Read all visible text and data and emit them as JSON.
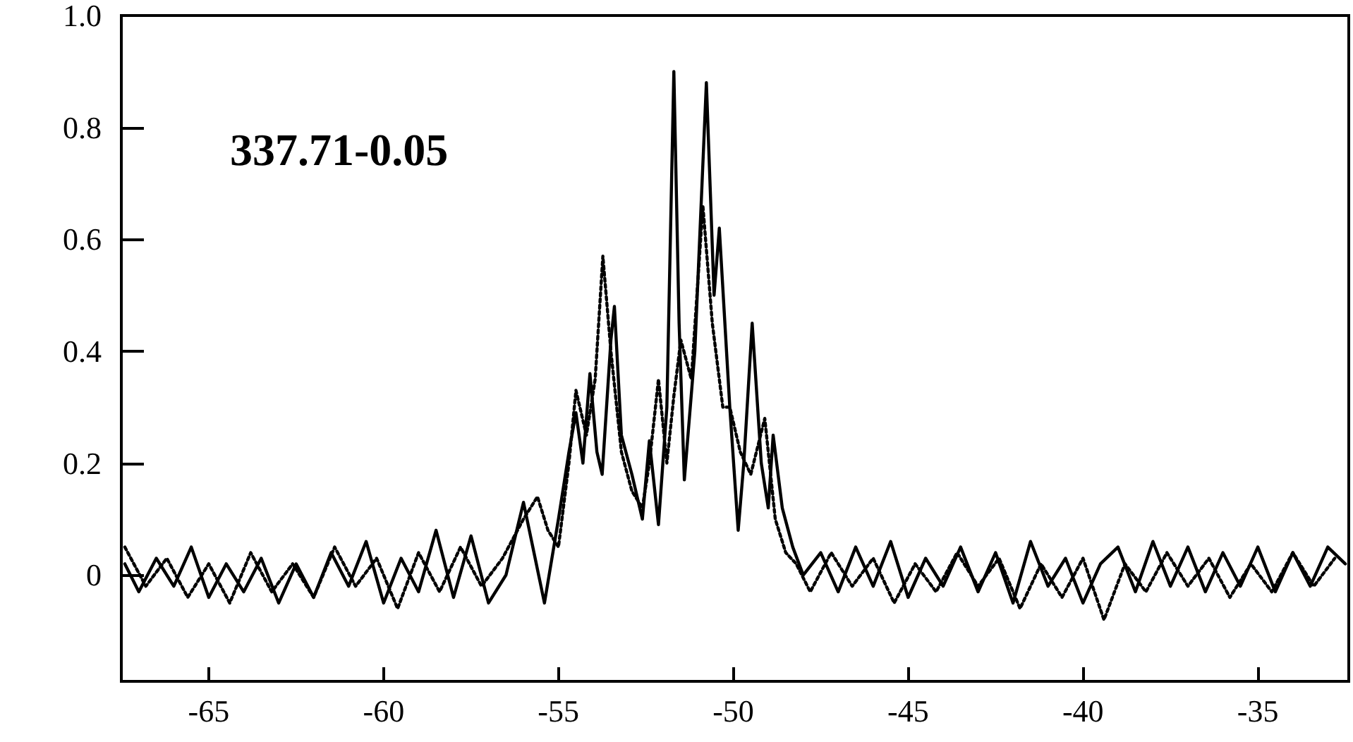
{
  "chart_data": {
    "type": "line",
    "annotations": [
      "337.71-0.05"
    ],
    "xlim": [
      -67.5,
      -32.4
    ],
    "xticks": [
      -65,
      -60,
      -55,
      -50,
      -45,
      -40,
      -35
    ],
    "ylim": [
      -0.19,
      1.0
    ],
    "yticks": [
      0,
      {
        "value": 0.2,
        "label": "0.2"
      },
      {
        "value": 0.4,
        "label": "0.4"
      },
      {
        "value": 0.6,
        "label": "0.6"
      },
      {
        "value": 0.8,
        "label": "0.8"
      },
      {
        "value": 1,
        "label": "1.0"
      }
    ],
    "grid": false,
    "marker": "none",
    "series": [
      {
        "color": "#000000",
        "line_style": "solid",
        "x": [
          -67.4,
          -67,
          -66.5,
          -66,
          -65.5,
          -65,
          -64.5,
          -64,
          -63.5,
          -63,
          -62.5,
          -62,
          -61.5,
          -61,
          -60.5,
          -60,
          -59.5,
          -59,
          -58.5,
          -58,
          -57.5,
          -57,
          -56.5,
          -56,
          -55.7,
          -55.4,
          -55,
          -54.7,
          -54.5,
          -54.3,
          -54.1,
          -53.9,
          -53.75,
          -53.5,
          -53.4,
          -53.2,
          -52.9,
          -52.6,
          -52.4,
          -52.14,
          -51.9,
          -51.7,
          -51.55,
          -51.4,
          -51.1,
          -50.77,
          -50.55,
          -50.4,
          -50.1,
          -49.86,
          -49.7,
          -49.46,
          -49.2,
          -49,
          -48.86,
          -48.6,
          -48.3,
          -48,
          -47.5,
          -47,
          -46.5,
          -46,
          -45.5,
          -45,
          -44.5,
          -44,
          -43.5,
          -43,
          -42.5,
          -42,
          -41.5,
          -41,
          -40.5,
          -40,
          -39.5,
          -39,
          -38.5,
          -38,
          -37.5,
          -37,
          -36.5,
          -36,
          -35.5,
          -35,
          -34.5,
          -34,
          -33.5,
          -33,
          -32.5
        ],
        "values": [
          0.02,
          -0.03,
          0.03,
          -0.02,
          0.05,
          -0.04,
          0.02,
          -0.03,
          0.03,
          -0.05,
          0.02,
          -0.04,
          0.04,
          -0.02,
          0.06,
          -0.05,
          0.03,
          -0.03,
          0.08,
          -0.04,
          0.07,
          -0.05,
          0.0,
          0.13,
          0.04,
          -0.05,
          0.1,
          0.22,
          0.29,
          0.2,
          0.36,
          0.22,
          0.18,
          0.42,
          0.48,
          0.25,
          0.18,
          0.1,
          0.24,
          0.09,
          0.3,
          0.9,
          0.45,
          0.17,
          0.4,
          0.88,
          0.5,
          0.62,
          0.3,
          0.08,
          0.2,
          0.45,
          0.2,
          0.12,
          0.25,
          0.12,
          0.05,
          0.0,
          0.04,
          -0.03,
          0.05,
          -0.02,
          0.06,
          -0.04,
          0.03,
          -0.02,
          0.05,
          -0.03,
          0.04,
          -0.05,
          0.06,
          -0.02,
          0.03,
          -0.05,
          0.02,
          0.05,
          -0.03,
          0.06,
          -0.02,
          0.05,
          -0.03,
          0.04,
          -0.02,
          0.05,
          -0.03,
          0.04,
          -0.02,
          0.05,
          0.02
        ]
      },
      {
        "color": "#000000",
        "line_style": "dotted",
        "x": [
          -67.4,
          -66.8,
          -66.2,
          -65.6,
          -65,
          -64.4,
          -63.8,
          -63.2,
          -62.6,
          -62,
          -61.4,
          -60.8,
          -60.2,
          -59.6,
          -59,
          -58.4,
          -57.8,
          -57.2,
          -56.6,
          -56,
          -55.6,
          -55.3,
          -55,
          -54.7,
          -54.5,
          -54.2,
          -53.95,
          -53.73,
          -53.5,
          -53.2,
          -52.9,
          -52.6,
          -52.4,
          -52.14,
          -51.9,
          -51.7,
          -51.5,
          -51.2,
          -50.87,
          -50.6,
          -50.3,
          -50.1,
          -49.8,
          -49.5,
          -49.1,
          -48.8,
          -48.5,
          -48.2,
          -47.8,
          -47.2,
          -46.6,
          -46,
          -45.4,
          -44.8,
          -44.2,
          -43.6,
          -43,
          -42.4,
          -41.8,
          -41.2,
          -40.6,
          -40,
          -39.4,
          -38.8,
          -38.2,
          -37.6,
          -37,
          -36.4,
          -35.8,
          -35.2,
          -34.6,
          -34,
          -33.4,
          -32.8
        ],
        "values": [
          0.05,
          -0.02,
          0.03,
          -0.04,
          0.02,
          -0.05,
          0.04,
          -0.03,
          0.02,
          -0.04,
          0.05,
          -0.02,
          0.03,
          -0.06,
          0.04,
          -0.03,
          0.05,
          -0.02,
          0.03,
          0.1,
          0.14,
          0.08,
          0.05,
          0.2,
          0.33,
          0.25,
          0.35,
          0.57,
          0.4,
          0.22,
          0.15,
          0.12,
          0.2,
          0.35,
          0.2,
          0.32,
          0.42,
          0.35,
          0.66,
          0.45,
          0.3,
          0.3,
          0.22,
          0.18,
          0.28,
          0.1,
          0.04,
          0.02,
          -0.03,
          0.04,
          -0.02,
          0.03,
          -0.05,
          0.02,
          -0.03,
          0.04,
          -0.02,
          0.03,
          -0.06,
          0.02,
          -0.04,
          0.03,
          -0.08,
          0.02,
          -0.03,
          0.04,
          -0.02,
          0.03,
          -0.04,
          0.02,
          -0.03,
          0.04,
          -0.02,
          0.03
        ]
      }
    ]
  }
}
